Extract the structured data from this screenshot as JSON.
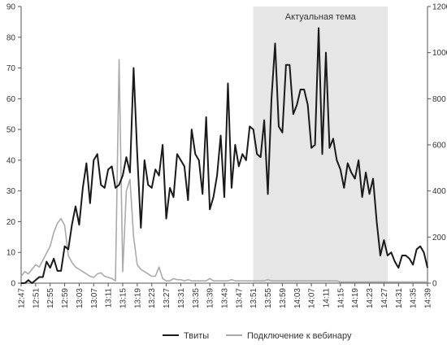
{
  "chart_data": {
    "type": "line",
    "x_tick_labels": [
      "12:47",
      "12:51",
      "12:55",
      "12:59",
      "13:03",
      "13:07",
      "13:11",
      "13:15",
      "13:19",
      "13:23",
      "13:27",
      "13:31",
      "13:35",
      "13:39",
      "13:43",
      "13:47",
      "13:51",
      "13:55",
      "13:59",
      "14:03",
      "14:07",
      "14:11",
      "14:15",
      "14:19",
      "14:23",
      "14:27",
      "14:31",
      "14:35",
      "14:39"
    ],
    "x_range_minutes": [
      0,
      112
    ],
    "left_axis": {
      "ylim": [
        0,
        90
      ],
      "ticks": [
        0,
        10,
        20,
        30,
        40,
        50,
        60,
        70,
        80,
        90
      ]
    },
    "right_axis": {
      "ylim": [
        0,
        1200
      ],
      "ticks": [
        0,
        200,
        400,
        600,
        800,
        1000,
        1200
      ]
    },
    "highlight_band": {
      "label": "Актуальная тема",
      "x_start_minutes": 64,
      "x_end_minutes": 101
    },
    "legend_placement": "bottom",
    "series": [
      {
        "name": "Твиты",
        "axis": "left",
        "color": "#1a1a1a",
        "x_minutes": [
          0,
          1,
          2,
          3,
          4,
          5,
          6,
          7,
          8,
          9,
          10,
          11,
          12,
          13,
          14,
          15,
          16,
          17,
          18,
          19,
          20,
          21,
          22,
          23,
          24,
          25,
          26,
          27,
          28,
          29,
          30,
          31,
          32,
          33,
          34,
          35,
          36,
          37,
          38,
          39,
          40,
          41,
          42,
          43,
          44,
          45,
          46,
          47,
          48,
          49,
          50,
          51,
          52,
          53,
          54,
          55,
          56,
          57,
          58,
          59,
          60,
          61,
          62,
          63,
          64,
          65,
          66,
          67,
          68,
          69,
          70,
          71,
          72,
          73,
          74,
          75,
          76,
          77,
          78,
          79,
          80,
          81,
          82,
          83,
          84,
          85,
          86,
          87,
          88,
          89,
          90,
          91,
          92,
          93,
          94,
          95,
          96,
          97,
          98,
          99,
          100,
          101,
          102,
          103,
          104,
          105,
          106,
          107,
          108,
          109,
          110,
          111,
          112
        ],
        "values": [
          0,
          0,
          1,
          0,
          1,
          2,
          2,
          7,
          5,
          8,
          4,
          4,
          12,
          11,
          19,
          25,
          19,
          31,
          39,
          26,
          40,
          42,
          32,
          31,
          37,
          38,
          31,
          32,
          35,
          41,
          36,
          70,
          42,
          18,
          40,
          32,
          31,
          37,
          35,
          45,
          21,
          31,
          28,
          42,
          40,
          38,
          27,
          50,
          42,
          40,
          29,
          54,
          24,
          28,
          35,
          48,
          28,
          65,
          31,
          45,
          38,
          42,
          40,
          51,
          50,
          42,
          41,
          53,
          29,
          60,
          78,
          51,
          49,
          71,
          71,
          55,
          58,
          63,
          63,
          58,
          44,
          45,
          83,
          42,
          75,
          44,
          47,
          40,
          37,
          31,
          39,
          36,
          34,
          40,
          28,
          36,
          29,
          34,
          20,
          9,
          14,
          9,
          10,
          7,
          5,
          9,
          9,
          8,
          6,
          11,
          12,
          10,
          5
        ]
      },
      {
        "name": "Подключение к вебинару",
        "axis": "right",
        "color": "#aaaaaa",
        "x_minutes": [
          0,
          1,
          2,
          3,
          4,
          5,
          6,
          7,
          8,
          9,
          10,
          11,
          12,
          13,
          14,
          15,
          16,
          17,
          18,
          19,
          20,
          21,
          22,
          23,
          24,
          25,
          26,
          27,
          28,
          29,
          30,
          31,
          32,
          33,
          34,
          35,
          36,
          37,
          38,
          39,
          40,
          41,
          42,
          43,
          44,
          45,
          46,
          47,
          48,
          49,
          50,
          51,
          52,
          53,
          54,
          55,
          56,
          57,
          58,
          59,
          60,
          61,
          62,
          63,
          64,
          65,
          66,
          67,
          68,
          69,
          70,
          71,
          72,
          73,
          74,
          75,
          76,
          77,
          78,
          79,
          80,
          81,
          82,
          83,
          84,
          85,
          86,
          87,
          88,
          89,
          90,
          91,
          92,
          93,
          94,
          95,
          96,
          97,
          98,
          99,
          100,
          101,
          102,
          103,
          104,
          105,
          106,
          107,
          108,
          109,
          110,
          111,
          112
        ],
        "values": [
          30,
          50,
          40,
          60,
          80,
          70,
          100,
          130,
          160,
          220,
          260,
          280,
          250,
          120,
          90,
          70,
          60,
          50,
          40,
          30,
          25,
          40,
          45,
          30,
          25,
          20,
          10,
          970,
          50,
          400,
          450,
          200,
          80,
          60,
          50,
          40,
          30,
          30,
          70,
          20,
          10,
          10,
          20,
          15,
          15,
          10,
          15,
          10,
          10,
          10,
          10,
          10,
          20,
          10,
          10,
          10,
          10,
          10,
          15,
          10,
          10,
          10,
          10,
          10,
          10,
          10,
          10,
          10,
          15,
          10,
          10,
          10,
          10,
          10,
          10,
          10,
          10,
          10,
          10,
          10,
          10,
          10,
          10,
          10,
          10,
          10,
          10,
          10,
          5,
          5,
          5,
          5,
          5,
          5,
          5,
          5,
          5,
          5,
          5,
          5,
          5,
          5,
          5,
          5,
          5,
          5,
          5,
          5,
          5,
          5,
          5,
          5,
          5
        ]
      }
    ]
  }
}
